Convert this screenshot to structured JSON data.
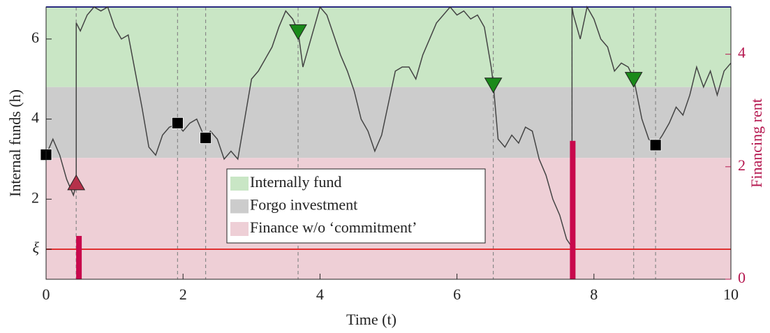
{
  "chart_data": {
    "type": "line",
    "xlabel": "Time (t)",
    "ylabel": "Internal funds (h)",
    "y2label": "Financing rent",
    "xlim": [
      0,
      10
    ],
    "ylim": [
      0,
      6.8
    ],
    "y2lim": [
      0,
      4.84
    ],
    "xticks": [
      0,
      2,
      4,
      6,
      8,
      10
    ],
    "yticks": [
      {
        "value": 0.75,
        "label": "ξ"
      },
      2,
      4,
      6
    ],
    "y2ticks": [
      0,
      2,
      4
    ],
    "color": "#444444",
    "x": [
      0,
      0.1,
      0.2,
      0.3,
      0.4,
      0.44,
      0.44,
      0.5,
      0.6,
      0.7,
      0.8,
      0.9,
      1.0,
      1.1,
      1.2,
      1.3,
      1.4,
      1.5,
      1.6,
      1.7,
      1.8,
      1.92,
      2.0,
      2.1,
      2.2,
      2.3,
      2.33,
      2.4,
      2.5,
      2.6,
      2.7,
      2.8,
      2.9,
      3.0,
      3.1,
      3.2,
      3.3,
      3.4,
      3.5,
      3.6,
      3.68,
      3.75,
      3.8,
      3.9,
      4.0,
      4.1,
      4.2,
      4.3,
      4.4,
      4.5,
      4.6,
      4.7,
      4.8,
      4.9,
      5.0,
      5.1,
      5.2,
      5.3,
      5.4,
      5.5,
      5.6,
      5.7,
      5.8,
      5.9,
      6.0,
      6.1,
      6.2,
      6.3,
      6.4,
      6.5,
      6.53,
      6.6,
      6.7,
      6.8,
      6.9,
      7.0,
      7.1,
      7.2,
      7.3,
      7.4,
      7.5,
      7.6,
      7.68,
      7.68,
      7.7,
      7.8,
      7.9,
      8.0,
      8.1,
      8.2,
      8.3,
      8.4,
      8.5,
      8.58,
      8.7,
      8.8,
      8.9,
      9.0,
      9.1,
      9.2,
      9.3,
      9.4,
      9.5,
      9.6,
      9.7,
      9.8,
      9.9,
      10.0
    ],
    "values": [
      3.1,
      3.5,
      3.1,
      2.5,
      2.1,
      2.38,
      6.4,
      6.2,
      6.6,
      6.8,
      6.7,
      6.8,
      6.3,
      6.0,
      6.1,
      5.2,
      4.3,
      3.3,
      3.1,
      3.6,
      3.8,
      3.87,
      3.7,
      3.9,
      4.0,
      3.6,
      3.53,
      3.7,
      3.5,
      3.0,
      3.2,
      3.0,
      4.0,
      5.0,
      5.2,
      5.5,
      5.8,
      6.3,
      6.7,
      6.5,
      6.2,
      5.3,
      5.6,
      6.2,
      6.8,
      6.6,
      6.1,
      5.6,
      5.2,
      4.7,
      4.0,
      3.7,
      3.2,
      3.6,
      4.4,
      5.2,
      5.3,
      5.3,
      5.0,
      5.6,
      6.0,
      6.4,
      6.6,
      6.8,
      6.6,
      6.7,
      6.5,
      6.6,
      6.3,
      5.3,
      4.88,
      3.5,
      3.3,
      3.6,
      3.4,
      3.8,
      3.7,
      3.0,
      2.6,
      2.0,
      1.6,
      1.0,
      0.8,
      6.8,
      6.6,
      6.0,
      6.8,
      6.5,
      6.0,
      5.8,
      5.2,
      5.4,
      5.3,
      5.02,
      4.0,
      3.5,
      3.34,
      3.6,
      3.9,
      4.3,
      4.1,
      4.6,
      5.3,
      4.8,
      5.2,
      4.6,
      5.2,
      5.4
    ],
    "regions": [
      {
        "name": "Internally fund",
        "color": "#c9e6c5",
        "range": [
          4.8,
          6.8
        ]
      },
      {
        "name": "Forgo investment",
        "color": "#cccccc",
        "range": [
          3.03,
          4.8
        ]
      },
      {
        "name": "Finance w/o ‘commitment’",
        "color": "#eecfd6",
        "range": [
          0,
          3.03
        ]
      }
    ],
    "lines": [
      {
        "value": 6.8,
        "color": "#3333dd"
      },
      {
        "value": 0.75,
        "color": "#e03030"
      }
    ],
    "event_times": [
      0.44,
      1.92,
      2.33,
      3.68,
      6.53,
      7.68,
      8.58,
      8.9
    ],
    "squares": {
      "color": "#000000",
      "x": [
        0,
        1.92,
        2.33,
        8.9
      ],
      "values": [
        3.11,
        3.9,
        3.53,
        3.35
      ]
    },
    "triangles_up": {
      "color": "#b5304a",
      "x": [
        0.44
      ],
      "values": [
        2.39
      ]
    },
    "triangles_down": {
      "color": "#1a8a1a",
      "x": [
        3.68,
        6.53,
        8.58
      ],
      "values": [
        6.2,
        4.87,
        5.01
      ]
    },
    "bars": {
      "axis": "y2",
      "color": "#c8084c",
      "x": [
        0.48,
        7.69
      ],
      "values": [
        0.77,
        2.46
      ]
    },
    "y2color": "#b5174f"
  }
}
